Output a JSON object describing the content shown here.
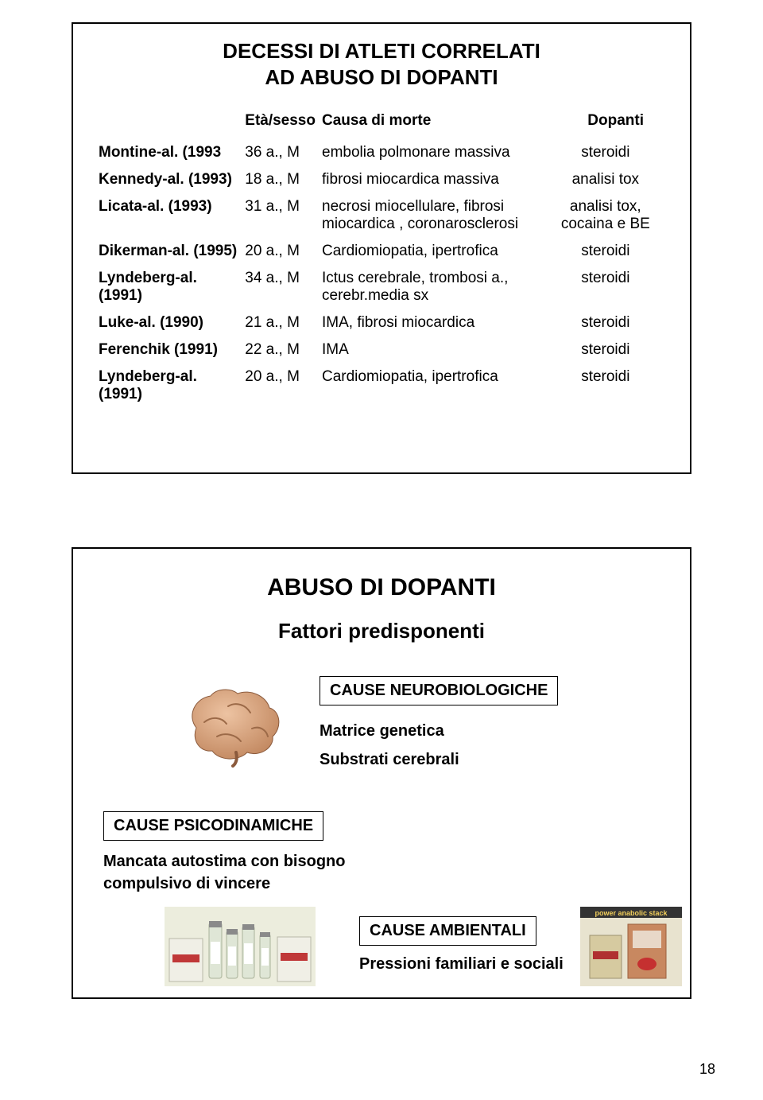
{
  "slide1": {
    "title_line1": "DECESSI DI ATLETI CORRELATI",
    "title_line2": "AD ABUSO DI DOPANTI",
    "headers": {
      "c1": "",
      "c2": "Età/sesso",
      "c3": "Causa di morte",
      "c4": "Dopanti"
    },
    "rows": [
      {
        "ref": "Montine-al. (1993",
        "age": "36 a., M",
        "cause": "embolia polmonare massiva",
        "dopant": "steroidi"
      },
      {
        "ref": "Kennedy-al. (1993)",
        "age": "18 a., M",
        "cause": "fibrosi miocardica massiva",
        "dopant": "analisi tox"
      },
      {
        "ref": "Licata-al. (1993)",
        "age": "31 a., M",
        "cause": "necrosi miocellulare, fibrosi miocardica , coronarosclerosi",
        "dopant": "analisi tox, cocaina e BE"
      },
      {
        "ref": "Dikerman-al. (1995)",
        "age": "20 a., M",
        "cause": "Cardiomiopatia, ipertrofica",
        "dopant": "steroidi"
      },
      {
        "ref": "Lyndeberg-al. (1991)",
        "age": "34 a., M",
        "cause": "Ictus cerebrale,  trombosi a., cerebr.media sx",
        "dopant": "steroidi"
      },
      {
        "ref": "Luke-al. (1990)",
        "age": "21 a., M",
        "cause": "IMA, fibrosi miocardica",
        "dopant": "steroidi"
      },
      {
        "ref": "Ferenchik (1991)",
        "age": "22 a., M",
        "cause": "IMA",
        "dopant": "steroidi"
      },
      {
        "ref": "Lyndeberg-al. (1991)",
        "age": "20 a., M",
        "cause": "Cardiomiopatia,  ipertrofica",
        "dopant": "steroidi"
      }
    ]
  },
  "slide2": {
    "title": "ABUSO DI DOPANTI",
    "subtitle": "Fattori predisponenti",
    "neuro": {
      "heading": "CAUSE NEUROBIOLOGICHE",
      "line1": "Matrice genetica",
      "line2": "Substrati cerebrali"
    },
    "psico": {
      "heading": "CAUSE PSICODINAMICHE",
      "line1": "Mancata autostima con bisogno compulsivo di vincere"
    },
    "amb": {
      "heading": "CAUSE AMBIENTALI",
      "line1": "Pressioni familiari e sociali"
    },
    "brain_color": "#d9a07a",
    "brain_shadow": "#b5835f",
    "vial_colors": {
      "bg": "#e8ead8",
      "glass": "#dce3d0",
      "label": "#ffffff",
      "cap": "#8a8a8a",
      "box_red": "#b03030",
      "box_white": "#f2f2ea"
    },
    "pack_colors": {
      "banner_bg": "#333333",
      "banner_text": "#f5d060",
      "box1": "#d8cfa8",
      "box2": "#c07850",
      "pill": "#c53030"
    }
  },
  "pagenum": "18"
}
